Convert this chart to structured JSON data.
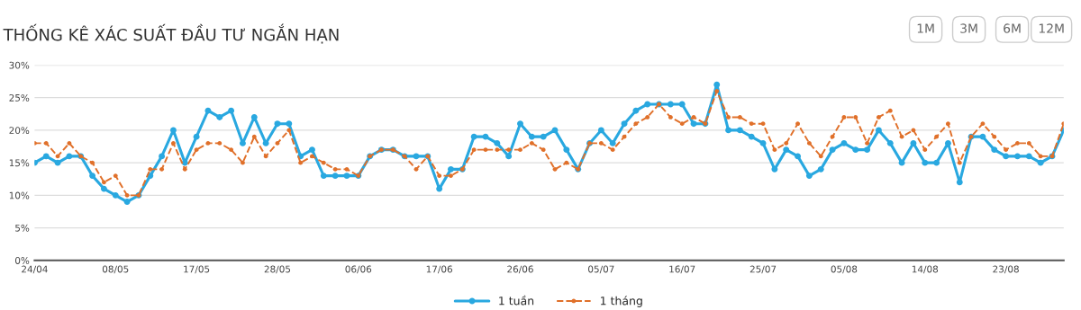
{
  "chart_data": {
    "type": "line",
    "title": "THỐNG KÊ XÁC SUẤT ĐẦU TƯ NGẮN HẠN",
    "annotations": [
      "1M",
      "3M",
      "6M",
      "12M"
    ],
    "categories": [
      "24/04",
      null,
      null,
      null,
      null,
      null,
      null,
      "08/05",
      null,
      null,
      null,
      null,
      null,
      null,
      "17/05",
      null,
      null,
      null,
      null,
      null,
      null,
      "28/05",
      null,
      null,
      null,
      null,
      null,
      null,
      "06/06",
      null,
      null,
      null,
      null,
      null,
      null,
      "17/06",
      null,
      null,
      null,
      null,
      null,
      null,
      "26/06",
      null,
      null,
      null,
      null,
      null,
      null,
      "05/07",
      null,
      null,
      null,
      null,
      null,
      null,
      "16/07",
      null,
      null,
      null,
      null,
      null,
      null,
      "25/07",
      null,
      null,
      null,
      null,
      null,
      null,
      "05/08",
      null,
      null,
      null,
      null,
      null,
      null,
      "14/08",
      null,
      null,
      null,
      null,
      null,
      null,
      "23/08",
      null,
      null,
      null,
      null,
      null
    ],
    "series": [
      {
        "name": "1 tuần",
        "color": "#29a8e0",
        "line_style": "solid",
        "values": [
          15,
          16,
          15,
          16,
          16,
          13,
          11,
          10,
          9,
          10,
          13,
          16,
          20,
          15,
          19,
          23,
          22,
          23,
          18,
          22,
          18,
          21,
          21,
          16,
          17,
          13,
          13,
          13,
          13,
          16,
          17,
          17,
          16,
          16,
          16,
          11,
          14,
          14,
          19,
          19,
          18,
          16,
          21,
          19,
          19,
          20,
          17,
          14,
          18,
          20,
          18,
          21,
          23,
          24,
          24,
          24,
          24,
          21,
          21,
          27,
          20,
          20,
          19,
          18,
          14,
          17,
          16,
          13,
          14,
          17,
          18,
          17,
          17,
          20,
          18,
          15,
          18,
          15,
          15,
          18,
          12,
          19,
          19,
          17,
          16,
          16,
          16,
          15,
          16,
          20
        ]
      },
      {
        "name": "1 tháng",
        "color": "#e0702a",
        "line_style": "dashed",
        "values": [
          18,
          18,
          16,
          18,
          16,
          15,
          12,
          13,
          10,
          10,
          14,
          14,
          18,
          14,
          17,
          18,
          18,
          17,
          15,
          19,
          16,
          18,
          20,
          15,
          16,
          15,
          14,
          14,
          13,
          16,
          17,
          17,
          16,
          14,
          16,
          13,
          13,
          14,
          17,
          17,
          17,
          17,
          17,
          18,
          17,
          14,
          15,
          14,
          18,
          18,
          17,
          19,
          21,
          22,
          24,
          22,
          21,
          22,
          21,
          26,
          22,
          22,
          21,
          21,
          17,
          18,
          21,
          18,
          16,
          19,
          22,
          22,
          18,
          22,
          23,
          19,
          20,
          17,
          19,
          21,
          15,
          19,
          21,
          19,
          17,
          18,
          18,
          16,
          16,
          21
        ]
      }
    ],
    "ylim": [
      0,
      30
    ],
    "yticks": [
      {
        "value": 0,
        "label": "0%"
      },
      {
        "value": 5,
        "label": "5%"
      },
      {
        "value": 10,
        "label": "10%"
      },
      {
        "value": 15,
        "label": "15%"
      },
      {
        "value": 20,
        "label": "20%"
      },
      {
        "value": 25,
        "label": "25%"
      },
      {
        "value": 30,
        "label": "30%"
      }
    ],
    "grid": "y",
    "legend": "bottom",
    "marker": "circle"
  }
}
